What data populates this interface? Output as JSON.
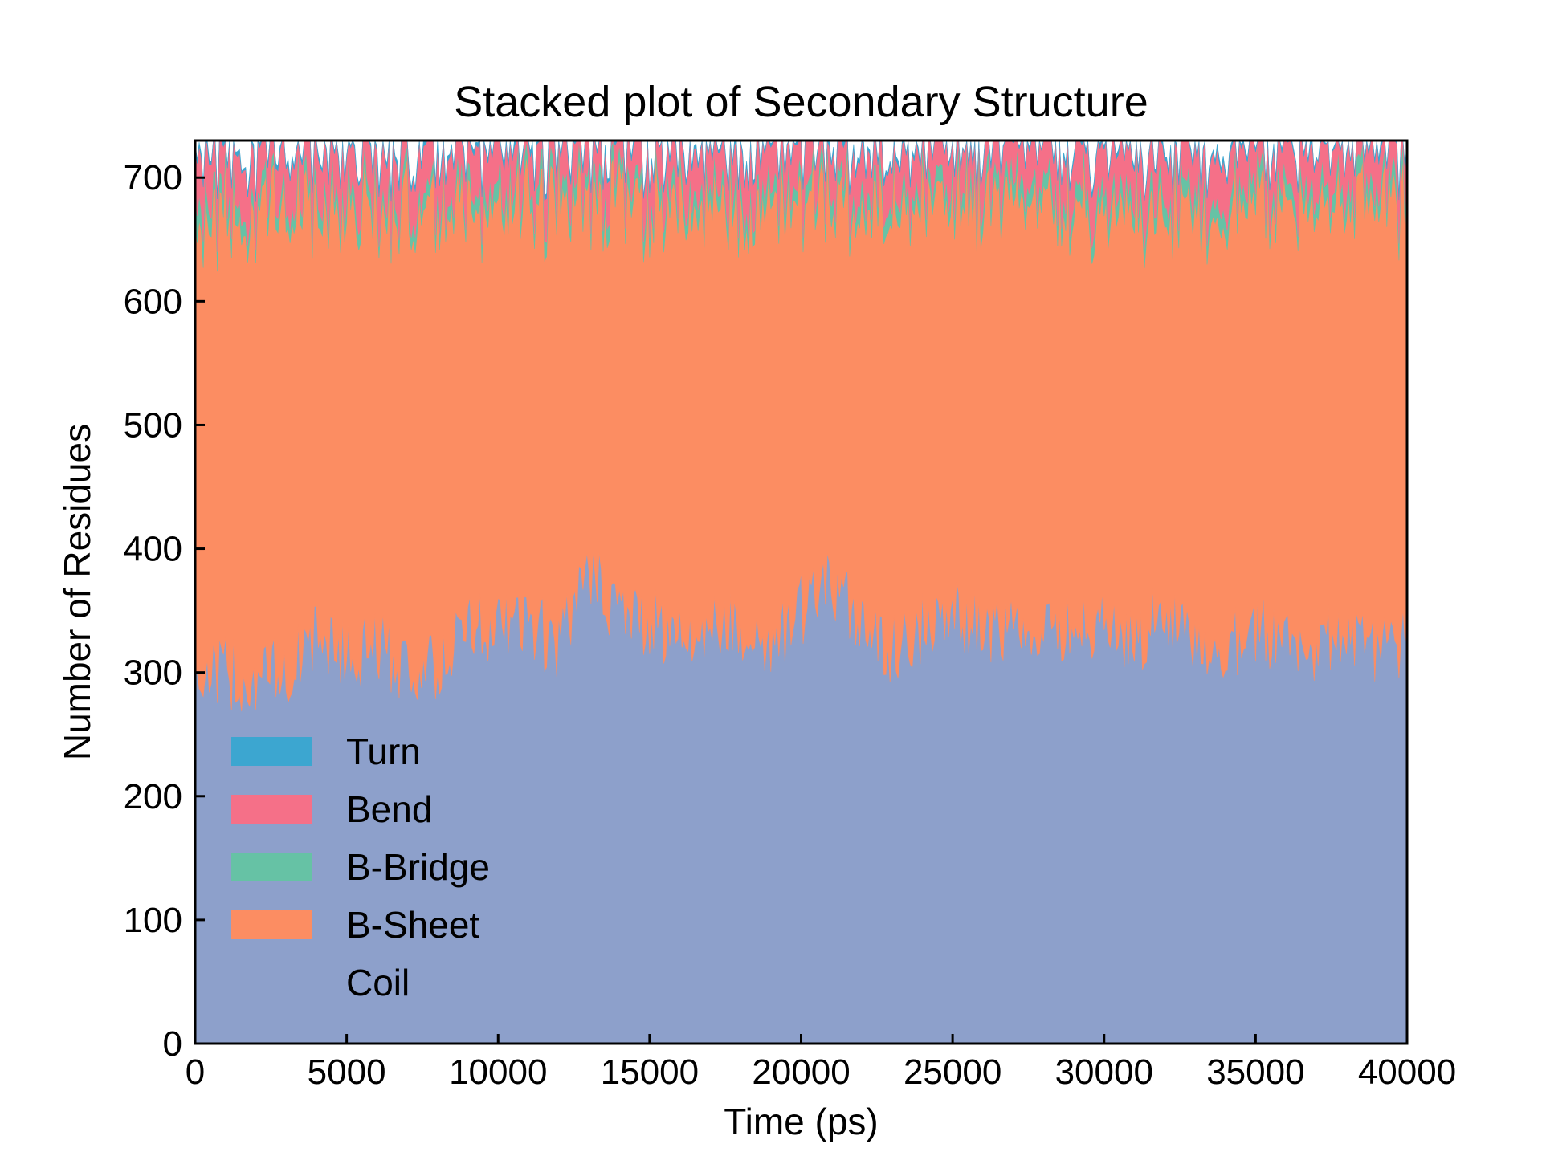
{
  "chart_data": {
    "type": "area",
    "stacked": true,
    "title": "Stacked plot of Secondary Structure",
    "xlabel": "Time (ps)",
    "ylabel": "Number of Residues",
    "xlim": [
      0,
      40000
    ],
    "ylim": [
      0,
      730
    ],
    "xticks": [
      0,
      5000,
      10000,
      15000,
      20000,
      25000,
      30000,
      35000,
      40000
    ],
    "yticks": [
      0,
      100,
      200,
      300,
      400,
      500,
      600,
      700
    ],
    "grid": false,
    "legend_position": "lower-left",
    "x": [
      0,
      1000,
      2000,
      3000,
      4000,
      5000,
      6000,
      7000,
      8000,
      9000,
      10000,
      11000,
      12000,
      13000,
      14000,
      15000,
      16000,
      17000,
      18000,
      19000,
      20000,
      21000,
      22000,
      23000,
      24000,
      25000,
      26000,
      27000,
      28000,
      29000,
      30000,
      31000,
      32000,
      33000,
      34000,
      35000,
      36000,
      37000,
      38000,
      39000,
      40000
    ],
    "series": [
      {
        "name": "Coil",
        "color": "#8da0cb",
        "values": [
          300,
          300,
          295,
          300,
          330,
          315,
          320,
          305,
          300,
          340,
          335,
          340,
          320,
          380,
          350,
          340,
          330,
          335,
          340,
          320,
          350,
          370,
          345,
          320,
          335,
          345,
          340,
          330,
          325,
          340,
          340,
          325,
          350,
          330,
          320,
          335,
          330,
          320,
          335,
          320,
          325
        ]
      },
      {
        "name": "B-Sheet",
        "color": "#fc8d62",
        "values": [
          365,
          370,
          380,
          375,
          345,
          362,
          355,
          372,
          378,
          335,
          340,
          340,
          362,
          298,
          330,
          340,
          350,
          345,
          335,
          358,
          328,
          308,
          332,
          360,
          345,
          335,
          340,
          348,
          350,
          335,
          333,
          350,
          325,
          343,
          355,
          345,
          350,
          360,
          345,
          358,
          350
        ]
      },
      {
        "name": "B-Bridge",
        "color": "#66c2a5",
        "values": [
          20,
          15,
          12,
          12,
          12,
          13,
          12,
          12,
          12,
          12,
          14,
          14,
          13,
          14,
          14,
          13,
          14,
          14,
          14,
          13,
          12,
          14,
          14,
          13,
          13,
          13,
          13,
          14,
          13,
          14,
          13,
          14,
          14,
          14,
          13,
          14,
          13,
          14,
          14,
          14,
          13
        ]
      },
      {
        "name": "Bend",
        "color": "#f57088",
        "values": [
          42,
          42,
          40,
          40,
          40,
          38,
          40,
          38,
          37,
          40,
          40,
          35,
          34,
          35,
          35,
          35,
          34,
          34,
          38,
          37,
          38,
          35,
          36,
          34,
          35,
          35,
          35,
          35,
          37,
          37,
          40,
          37,
          38,
          38,
          38,
          34,
          35,
          34,
          35,
          34,
          37
        ]
      },
      {
        "name": "Turn",
        "color": "#3ca6d0",
        "values": [
          3,
          3,
          3,
          3,
          3,
          2,
          3,
          3,
          3,
          3,
          3,
          3,
          3,
          3,
          3,
          2,
          3,
          2,
          3,
          2,
          2,
          3,
          3,
          3,
          2,
          2,
          2,
          3,
          2,
          3,
          3,
          2,
          3,
          3,
          3,
          2,
          2,
          2,
          1,
          4,
          2
        ]
      }
    ],
    "legend_order": [
      "Turn",
      "Bend",
      "B-Bridge",
      "B-Sheet",
      "Coil"
    ]
  }
}
